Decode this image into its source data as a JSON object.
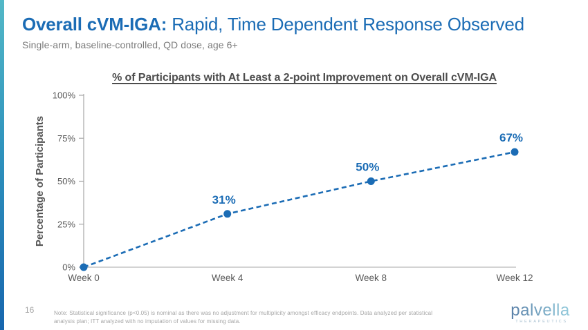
{
  "header": {
    "title_emphasis": "Overall cVM-IGA:",
    "title_rest": " Rapid, Time Dependent Response Observed",
    "subtitle": "Single-arm, baseline-controlled, QD dose, age 6+"
  },
  "chart_data": {
    "type": "line",
    "title": "% of Participants with At Least a 2-point Improvement on Overall cVM-IGA",
    "categories": [
      "Week 0",
      "Week 4",
      "Week 8",
      "Week 12"
    ],
    "values": [
      0,
      31,
      50,
      67
    ],
    "data_labels": [
      "",
      "31%",
      "50%",
      "67%"
    ],
    "ylabel": "Percentage of Participants",
    "xlabel": "",
    "yticks": [
      0,
      25,
      50,
      75,
      100
    ],
    "ytick_labels": [
      "0%",
      "25%",
      "50%",
      "75%",
      "100%"
    ],
    "ylim": [
      0,
      100
    ],
    "line_style": "dashed",
    "marker": "circle",
    "grid": false,
    "legend_position": "none",
    "colors": {
      "line": "#1b6cb5",
      "marker": "#1b6cb5",
      "data_label": "#1b6cb5",
      "axis": "#a6a6a6",
      "tick_label": "#595959",
      "axis_title": "#555555"
    }
  },
  "footer": {
    "page_number": "16",
    "note_lines": [
      "Note: Statistical significance (p<0.05) is nominal as there was no adjustment for multiplicity amongst efficacy endpoints. Data analyzed per statistical",
      "analysis plan; ITT analyzed with no imputation of values for missing data."
    ],
    "logo_text": "palvella",
    "logo_tagline": "THERAPEUTICS",
    "logo_colors": {
      "start": "#5a80a8",
      "end": "#93cbdc",
      "tagline": "#a9c1d1"
    }
  }
}
